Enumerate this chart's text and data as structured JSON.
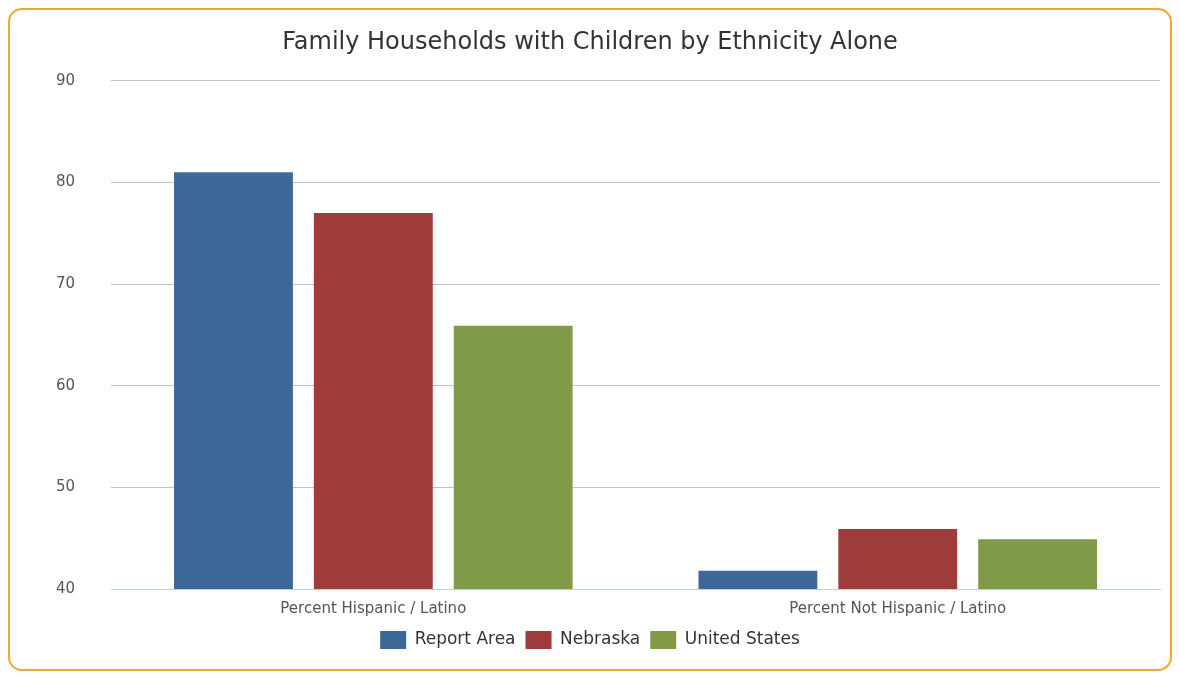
{
  "chart_data": {
    "type": "bar",
    "title": "Family Households with Children by Ethnicity Alone",
    "categories": [
      "Percent Hispanic / Latino",
      "Percent Not Hispanic / Latino"
    ],
    "series": [
      {
        "name": "Report Area",
        "color": "#3d6898",
        "values": [
          81,
          41.8
        ]
      },
      {
        "name": "Nebraska",
        "color": "#9e3b3b",
        "values": [
          77,
          45.9
        ]
      },
      {
        "name": "United States",
        "color": "#809a48",
        "values": [
          65.9,
          44.9
        ]
      }
    ],
    "ylim": [
      40,
      90
    ],
    "yticks": [
      40,
      50,
      60,
      70,
      80,
      90
    ],
    "grid": "y",
    "legend": "bottom"
  }
}
